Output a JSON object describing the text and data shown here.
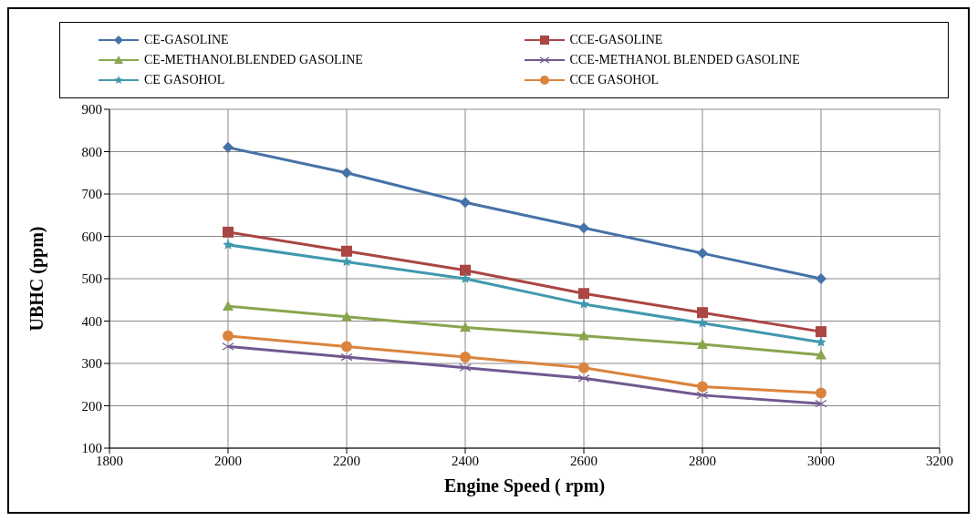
{
  "chart_data": {
    "type": "line",
    "xlabel": "Engine Speed ( rpm)",
    "ylabel": "UBHC (ppm)",
    "x": [
      2000,
      2200,
      2400,
      2600,
      2800,
      3000
    ],
    "xlim": [
      1800,
      3200
    ],
    "xticks": [
      1800,
      2000,
      2200,
      2400,
      2600,
      2800,
      3000,
      3200
    ],
    "ylim": [
      100,
      900
    ],
    "yticks": [
      100,
      200,
      300,
      400,
      500,
      600,
      700,
      800,
      900
    ],
    "grid": true,
    "legend": "top",
    "series": [
      {
        "name": "CE-GASOLINE",
        "color": "#4572a7",
        "marker": "diamond",
        "values": [
          810,
          750,
          680,
          620,
          560,
          500
        ]
      },
      {
        "name": "CCE-GASOLINE",
        "color": "#aa4643",
        "marker": "square",
        "values": [
          610,
          565,
          520,
          465,
          420,
          375
        ]
      },
      {
        "name": "CE-METHANOLBLENDED GASOLINE",
        "color": "#89a54e",
        "marker": "triangle",
        "values": [
          435,
          410,
          385,
          365,
          345,
          320
        ]
      },
      {
        "name": "CCE-METHANOL BLENDED GASOLINE",
        "color": "#71588f",
        "marker": "cross",
        "values": [
          340,
          315,
          290,
          265,
          225,
          205
        ]
      },
      {
        "name": "CE GASOHOL",
        "color": "#4198af",
        "marker": "star",
        "values": [
          580,
          540,
          500,
          440,
          395,
          350
        ]
      },
      {
        "name": "CCE GASOHOL",
        "color": "#db843d",
        "marker": "circle",
        "values": [
          365,
          340,
          315,
          290,
          245,
          230
        ]
      }
    ]
  }
}
